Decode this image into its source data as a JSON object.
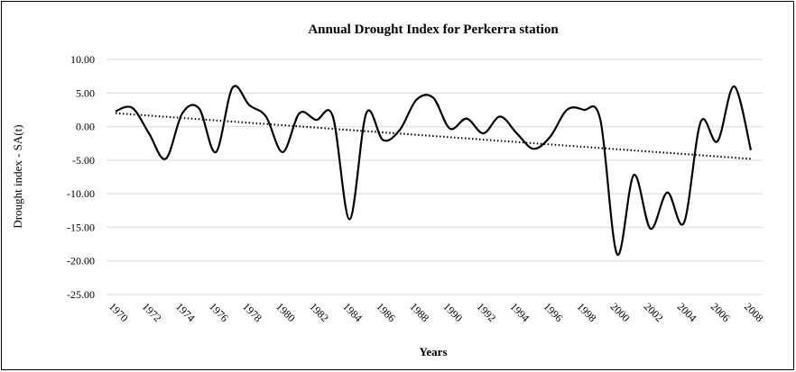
{
  "chart_data": {
    "type": "line",
    "title": "Annual  Drought Index for Perkerra station",
    "x_label": "Years",
    "y_label": "Drought index - SA(t)",
    "x": [
      1970,
      1971,
      1972,
      1973,
      1974,
      1975,
      1976,
      1977,
      1978,
      1979,
      1980,
      1981,
      1982,
      1983,
      1984,
      1985,
      1986,
      1987,
      1988,
      1989,
      1990,
      1991,
      1992,
      1993,
      1994,
      1995,
      1996,
      1997,
      1998,
      1999,
      2000,
      2001,
      2002,
      2003,
      2004,
      2005,
      2006,
      2007,
      2008
    ],
    "series": [
      {
        "color": "#000000",
        "values": [
          2.3,
          2.8,
          -1.0,
          -4.8,
          2.0,
          2.7,
          -3.8,
          5.8,
          3.2,
          1.5,
          -3.8,
          2.0,
          1.0,
          1.5,
          -13.8,
          2.0,
          -2.0,
          -0.5,
          4.0,
          4.3,
          -0.3,
          1.2,
          -1.0,
          1.5,
          -1.0,
          -3.3,
          -1.5,
          2.5,
          2.5,
          1.0,
          -19.0,
          -7.2,
          -15.2,
          -9.8,
          -14.3,
          0.7,
          -2.2,
          6.0,
          -3.5
        ]
      }
    ],
    "trendline": {
      "x": [
        1970,
        2008
      ],
      "values": [
        2.0,
        -4.8
      ],
      "color": "#000000"
    },
    "xlim": [
      1970,
      2008
    ],
    "xticks": [
      1970,
      1972,
      1974,
      1976,
      1978,
      1980,
      1982,
      1984,
      1986,
      1988,
      1990,
      1992,
      1994,
      1996,
      1998,
      2000,
      2002,
      2004,
      2006,
      2008
    ],
    "ylim": [
      -25,
      10
    ],
    "yticks": [
      {
        "value": -25,
        "label": "-25.00"
      },
      {
        "value": -20,
        "label": "-20.00"
      },
      {
        "value": -15,
        "label": "-15.00"
      },
      {
        "value": -10,
        "label": "-10.00"
      },
      {
        "value": -5,
        "label": "-5.00"
      },
      {
        "value": 0,
        "label": "0.00"
      },
      {
        "value": 5,
        "label": "5.00"
      },
      {
        "value": 10,
        "label": "10.00"
      }
    ],
    "grid": true
  }
}
